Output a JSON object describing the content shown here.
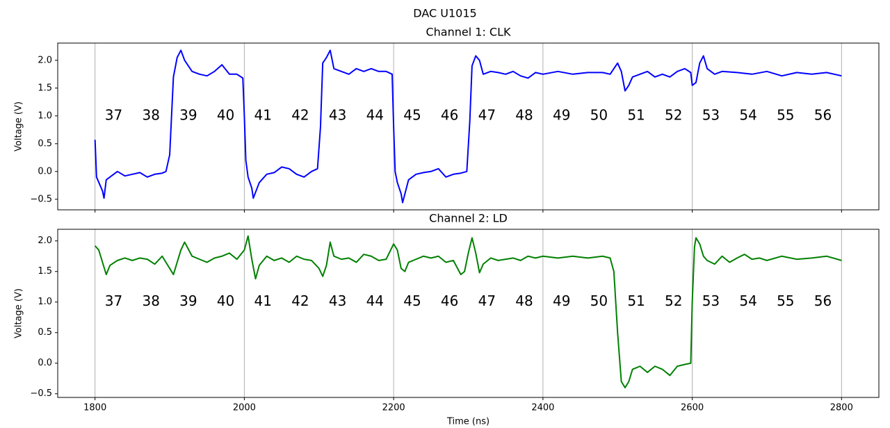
{
  "title": "DAC U1015",
  "chart_data": [
    {
      "type": "line",
      "title": "Channel 1: CLK",
      "ylabel": "Voltage (V)",
      "color": "#0000ff",
      "grid": "x",
      "show_xtick_labels": false,
      "xlim": [
        1750,
        2850
      ],
      "ylim": [
        -0.69,
        2.31
      ],
      "xticks": [
        1800,
        2000,
        2200,
        2400,
        2600,
        2800
      ],
      "yticks": [
        {
          "value": -0.5,
          "label": "−0.5"
        },
        {
          "value": 0,
          "label": "0.0"
        },
        0.5,
        {
          "value": 1,
          "label": "1.0"
        },
        1.5,
        {
          "value": 2,
          "label": "2.0"
        }
      ],
      "x": [
        1800,
        1802,
        1810,
        1812,
        1815,
        1820,
        1830,
        1840,
        1850,
        1860,
        1870,
        1880,
        1890,
        1895,
        1900,
        1905,
        1910,
        1915,
        1920,
        1930,
        1940,
        1950,
        1960,
        1970,
        1980,
        1990,
        1998,
        2000,
        2002,
        2005,
        2010,
        2012,
        2020,
        2030,
        2040,
        2050,
        2060,
        2070,
        2080,
        2090,
        2098,
        2102,
        2105,
        2110,
        2115,
        2120,
        2130,
        2140,
        2150,
        2160,
        2170,
        2180,
        2190,
        2198,
        2200,
        2202,
        2205,
        2210,
        2212,
        2220,
        2230,
        2240,
        2250,
        2260,
        2270,
        2280,
        2290,
        2298,
        2302,
        2305,
        2310,
        2315,
        2320,
        2330,
        2340,
        2350,
        2360,
        2370,
        2380,
        2390,
        2400,
        2420,
        2440,
        2460,
        2480,
        2490,
        2500,
        2505,
        2510,
        2515,
        2520,
        2530,
        2540,
        2550,
        2560,
        2570,
        2580,
        2590,
        2598,
        2600,
        2605,
        2610,
        2615,
        2620,
        2630,
        2640,
        2660,
        2680,
        2700,
        2720,
        2740,
        2760,
        2780,
        2800
      ],
      "values": [
        0.57,
        -0.1,
        -0.35,
        -0.48,
        -0.15,
        -0.1,
        0.0,
        -0.08,
        -0.05,
        -0.02,
        -0.1,
        -0.05,
        -0.03,
        0.0,
        0.3,
        1.7,
        2.05,
        2.18,
        2.0,
        1.8,
        1.75,
        1.72,
        1.8,
        1.92,
        1.75,
        1.75,
        1.68,
        1.0,
        0.2,
        -0.1,
        -0.3,
        -0.48,
        -0.2,
        -0.05,
        -0.02,
        0.08,
        0.05,
        -0.05,
        -0.1,
        0.0,
        0.05,
        0.8,
        1.95,
        2.05,
        2.18,
        1.85,
        1.8,
        1.75,
        1.85,
        1.8,
        1.85,
        1.8,
        1.8,
        1.75,
        0.8,
        0.0,
        -0.2,
        -0.4,
        -0.56,
        -0.15,
        -0.05,
        -0.02,
        0.0,
        0.05,
        -0.1,
        -0.05,
        -0.03,
        0.0,
        0.9,
        1.9,
        2.08,
        2.0,
        1.75,
        1.8,
        1.78,
        1.75,
        1.8,
        1.72,
        1.68,
        1.78,
        1.75,
        1.8,
        1.75,
        1.78,
        1.78,
        1.75,
        1.95,
        1.8,
        1.45,
        1.55,
        1.7,
        1.75,
        1.8,
        1.7,
        1.75,
        1.7,
        1.8,
        1.85,
        1.78,
        1.55,
        1.6,
        1.95,
        2.08,
        1.85,
        1.75,
        1.8,
        1.78,
        1.75,
        1.8,
        1.72,
        1.78,
        1.75,
        1.78,
        1.72
      ],
      "annotations": [
        {
          "text": "37",
          "x": 1825,
          "y": 1
        },
        {
          "text": "38",
          "x": 1875,
          "y": 1
        },
        {
          "text": "39",
          "x": 1925,
          "y": 1
        },
        {
          "text": "40",
          "x": 1975,
          "y": 1
        },
        {
          "text": "41",
          "x": 2025,
          "y": 1
        },
        {
          "text": "42",
          "x": 2075,
          "y": 1
        },
        {
          "text": "43",
          "x": 2125,
          "y": 1
        },
        {
          "text": "44",
          "x": 2175,
          "y": 1
        },
        {
          "text": "45",
          "x": 2225,
          "y": 1
        },
        {
          "text": "46",
          "x": 2275,
          "y": 1
        },
        {
          "text": "47",
          "x": 2325,
          "y": 1
        },
        {
          "text": "48",
          "x": 2375,
          "y": 1
        },
        {
          "text": "49",
          "x": 2425,
          "y": 1
        },
        {
          "text": "50",
          "x": 2475,
          "y": 1
        },
        {
          "text": "51",
          "x": 2525,
          "y": 1
        },
        {
          "text": "52",
          "x": 2575,
          "y": 1
        },
        {
          "text": "53",
          "x": 2625,
          "y": 1
        },
        {
          "text": "54",
          "x": 2675,
          "y": 1
        },
        {
          "text": "55",
          "x": 2725,
          "y": 1
        },
        {
          "text": "56",
          "x": 2775,
          "y": 1
        }
      ]
    },
    {
      "type": "line",
      "title": "Channel 2: LD",
      "ylabel": "Voltage (V)",
      "xlabel": "Time (ns)",
      "color": "#008000",
      "grid": "x",
      "show_xtick_labels": true,
      "xlim": [
        1750,
        2850
      ],
      "ylim": [
        -0.56,
        2.19
      ],
      "xticks": [
        1800,
        2000,
        2200,
        2400,
        2600,
        2800
      ],
      "yticks": [
        {
          "value": -0.5,
          "label": "−0.5"
        },
        {
          "value": 0,
          "label": "0.0"
        },
        0.5,
        {
          "value": 1,
          "label": "1.0"
        },
        1.5,
        {
          "value": 2,
          "label": "2.0"
        }
      ],
      "x": [
        1800,
        1805,
        1810,
        1815,
        1820,
        1830,
        1840,
        1850,
        1860,
        1870,
        1880,
        1890,
        1900,
        1905,
        1915,
        1920,
        1930,
        1940,
        1950,
        1960,
        1970,
        1980,
        1990,
        2000,
        2005,
        2010,
        2015,
        2020,
        2030,
        2040,
        2050,
        2060,
        2070,
        2080,
        2090,
        2100,
        2105,
        2110,
        2115,
        2120,
        2130,
        2140,
        2150,
        2160,
        2170,
        2180,
        2190,
        2200,
        2205,
        2210,
        2215,
        2220,
        2230,
        2240,
        2250,
        2260,
        2270,
        2280,
        2290,
        2295,
        2300,
        2305,
        2310,
        2315,
        2320,
        2330,
        2340,
        2350,
        2360,
        2370,
        2380,
        2390,
        2400,
        2420,
        2440,
        2460,
        2480,
        2490,
        2495,
        2500,
        2505,
        2510,
        2515,
        2520,
        2530,
        2540,
        2550,
        2560,
        2570,
        2580,
        2590,
        2598,
        2600,
        2603,
        2605,
        2610,
        2615,
        2620,
        2630,
        2640,
        2650,
        2660,
        2670,
        2680,
        2690,
        2700,
        2720,
        2740,
        2760,
        2780,
        2800
      ],
      "values": [
        1.92,
        1.85,
        1.65,
        1.45,
        1.6,
        1.68,
        1.72,
        1.68,
        1.72,
        1.7,
        1.62,
        1.75,
        1.55,
        1.45,
        1.85,
        1.98,
        1.75,
        1.7,
        1.65,
        1.72,
        1.75,
        1.8,
        1.7,
        1.85,
        2.08,
        1.7,
        1.38,
        1.6,
        1.75,
        1.68,
        1.72,
        1.65,
        1.75,
        1.7,
        1.68,
        1.55,
        1.42,
        1.6,
        1.98,
        1.75,
        1.7,
        1.72,
        1.65,
        1.78,
        1.75,
        1.68,
        1.7,
        1.95,
        1.85,
        1.55,
        1.5,
        1.65,
        1.7,
        1.75,
        1.72,
        1.75,
        1.65,
        1.68,
        1.45,
        1.5,
        1.8,
        2.05,
        1.8,
        1.48,
        1.62,
        1.72,
        1.68,
        1.7,
        1.72,
        1.68,
        1.75,
        1.72,
        1.75,
        1.72,
        1.75,
        1.72,
        1.75,
        1.72,
        1.5,
        0.5,
        -0.3,
        -0.4,
        -0.3,
        -0.1,
        -0.05,
        -0.15,
        -0.05,
        -0.1,
        -0.2,
        -0.05,
        -0.02,
        0.0,
        1.0,
        1.9,
        2.05,
        1.95,
        1.75,
        1.68,
        1.62,
        1.75,
        1.65,
        1.72,
        1.78,
        1.7,
        1.72,
        1.68,
        1.75,
        1.7,
        1.72,
        1.75,
        1.68
      ],
      "annotations": [
        {
          "text": "37",
          "x": 1825,
          "y": 1
        },
        {
          "text": "38",
          "x": 1875,
          "y": 1
        },
        {
          "text": "39",
          "x": 1925,
          "y": 1
        },
        {
          "text": "40",
          "x": 1975,
          "y": 1
        },
        {
          "text": "41",
          "x": 2025,
          "y": 1
        },
        {
          "text": "42",
          "x": 2075,
          "y": 1
        },
        {
          "text": "43",
          "x": 2125,
          "y": 1
        },
        {
          "text": "44",
          "x": 2175,
          "y": 1
        },
        {
          "text": "45",
          "x": 2225,
          "y": 1
        },
        {
          "text": "46",
          "x": 2275,
          "y": 1
        },
        {
          "text": "47",
          "x": 2325,
          "y": 1
        },
        {
          "text": "48",
          "x": 2375,
          "y": 1
        },
        {
          "text": "49",
          "x": 2425,
          "y": 1
        },
        {
          "text": "50",
          "x": 2475,
          "y": 1
        },
        {
          "text": "51",
          "x": 2525,
          "y": 1
        },
        {
          "text": "52",
          "x": 2575,
          "y": 1
        },
        {
          "text": "53",
          "x": 2625,
          "y": 1
        },
        {
          "text": "54",
          "x": 2675,
          "y": 1
        },
        {
          "text": "55",
          "x": 2725,
          "y": 1
        },
        {
          "text": "56",
          "x": 2775,
          "y": 1
        }
      ]
    }
  ]
}
